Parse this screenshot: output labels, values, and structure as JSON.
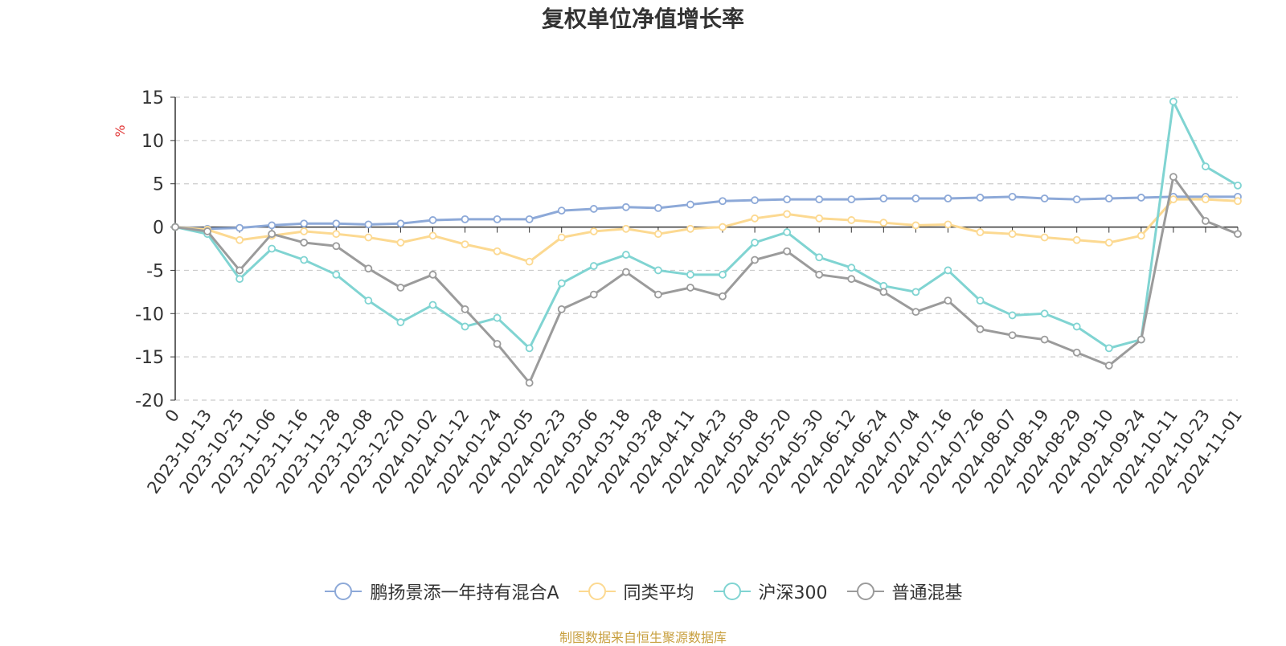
{
  "chart_data": {
    "type": "line",
    "title": "复权单位净值增长率",
    "ylabel": "%",
    "ylim": [
      -20,
      15
    ],
    "yticks": [
      15,
      10,
      5,
      0,
      -5,
      -10,
      -15,
      -20
    ],
    "grid": true,
    "legend_position": "bottom",
    "x_labels": [
      "0",
      "2023-10-13",
      "2023-10-25",
      "2023-11-06",
      "2023-11-16",
      "2023-11-28",
      "2023-12-08",
      "2023-12-20",
      "2024-01-02",
      "2024-01-12",
      "2024-01-24",
      "2024-02-05",
      "2024-02-23",
      "2024-03-06",
      "2024-03-18",
      "2024-03-28",
      "2024-04-11",
      "2024-04-23",
      "2024-05-08",
      "2024-05-20",
      "2024-05-30",
      "2024-06-12",
      "2024-06-24",
      "2024-07-04",
      "2024-07-16",
      "2024-07-26",
      "2024-08-07",
      "2024-08-19",
      "2024-08-29",
      "2024-09-10",
      "2024-09-24",
      "2024-10-11",
      "2024-10-23",
      "2024-11-01"
    ],
    "series": [
      {
        "name": "鹏扬景添一年持有混合A",
        "color": "#8da9d8",
        "values": [
          0,
          -0.2,
          -0.1,
          0.2,
          0.4,
          0.4,
          0.3,
          0.4,
          0.8,
          0.9,
          0.9,
          0.9,
          1.9,
          2.1,
          2.3,
          2.2,
          2.6,
          3.0,
          3.1,
          3.2,
          3.2,
          3.2,
          3.3,
          3.3,
          3.3,
          3.4,
          3.5,
          3.3,
          3.2,
          3.3,
          3.4,
          3.5,
          3.5,
          3.5
        ]
      },
      {
        "name": "同类平均",
        "color": "#fcd991",
        "values": [
          0,
          -0.3,
          -1.5,
          -1.0,
          -0.5,
          -0.8,
          -1.2,
          -1.8,
          -1.0,
          -2.0,
          -2.8,
          -4.0,
          -1.2,
          -0.5,
          -0.2,
          -0.8,
          -0.2,
          0.0,
          1.0,
          1.5,
          1.0,
          0.8,
          0.5,
          0.2,
          0.3,
          -0.6,
          -0.8,
          -1.2,
          -1.5,
          -1.8,
          -1.0,
          3.2,
          3.2,
          3.0
        ]
      },
      {
        "name": "沪深300",
        "color": "#80d4d2",
        "values": [
          0,
          -0.8,
          -6.0,
          -2.5,
          -3.8,
          -5.5,
          -8.5,
          -11.0,
          -9.0,
          -11.5,
          -10.5,
          -14.0,
          -6.5,
          -4.5,
          -3.2,
          -5.0,
          -5.5,
          -5.5,
          -1.8,
          -0.6,
          -3.5,
          -4.7,
          -6.8,
          -7.5,
          -5.0,
          -8.5,
          -10.2,
          -10.0,
          -11.5,
          -14.0,
          -13.0,
          14.5,
          7.0,
          4.8
        ]
      },
      {
        "name": "普通混基",
        "color": "#9b9b9b",
        "values": [
          0,
          -0.5,
          -5.0,
          -0.8,
          -1.8,
          -2.2,
          -4.8,
          -7.0,
          -5.5,
          -9.5,
          -13.5,
          -18.0,
          -9.5,
          -7.8,
          -5.2,
          -7.8,
          -7.0,
          -8.0,
          -3.8,
          -2.8,
          -5.5,
          -6.0,
          -7.5,
          -9.8,
          -8.5,
          -11.8,
          -12.5,
          -13.0,
          -14.5,
          -16.0,
          -13.0,
          5.8,
          0.7,
          -0.8
        ]
      }
    ]
  },
  "source_note": "制图数据来自恒生聚源数据库"
}
